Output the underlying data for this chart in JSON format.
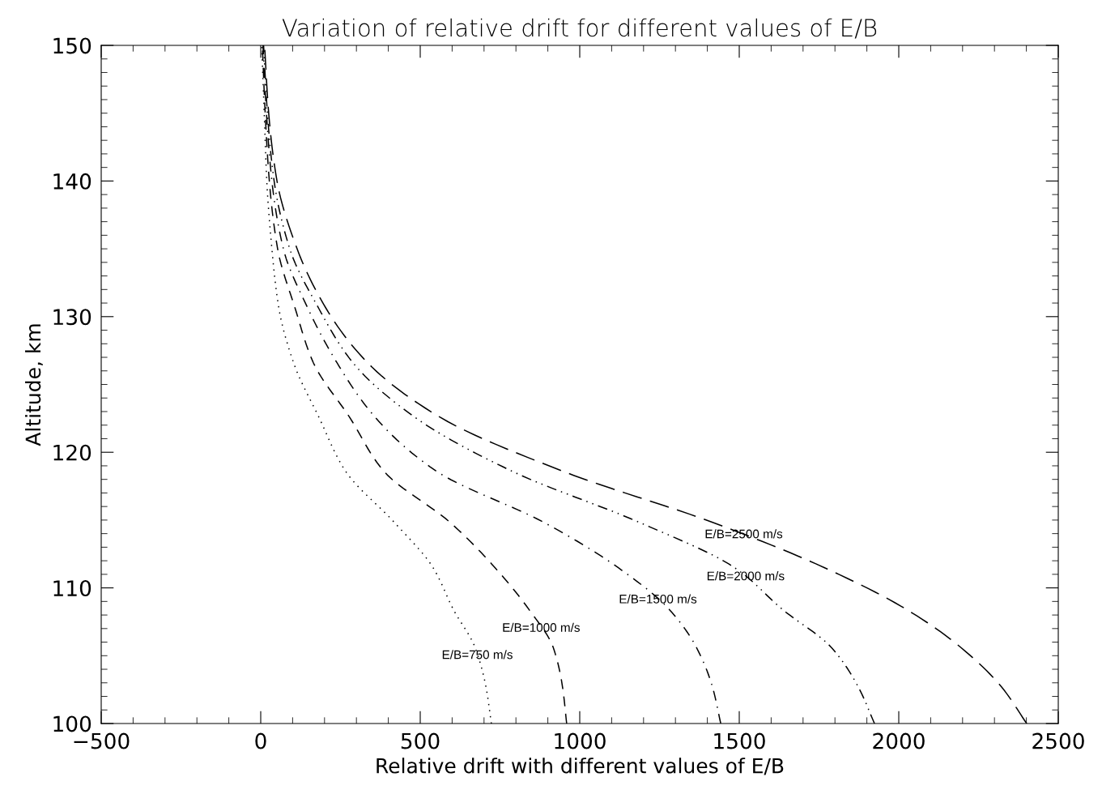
{
  "chart_data": {
    "type": "line",
    "title": "Variation of relative drift for different values of E/B",
    "xlabel": "Relative drift with different values of E/B",
    "ylabel": "Altitude, km",
    "xlim": [
      -500,
      2500
    ],
    "xticks": [
      {
        "value": -500,
        "label": "−500"
      },
      0,
      500,
      1000,
      1500,
      2000,
      2500
    ],
    "ylim": [
      100,
      150
    ],
    "yticks": [
      100,
      110,
      120,
      130,
      140,
      150
    ],
    "grid": false,
    "legend": false,
    "marker": "none",
    "series": [
      {
        "color": "#000000",
        "line_style": "dotted",
        "x": [
          723,
          706,
          672,
          604,
          540,
          420,
          266,
          182,
          103,
          57,
          35,
          19,
          11,
          3
        ],
        "values": [
          100,
          102.7,
          105.6,
          108.4,
          111.5,
          114.8,
          118.6,
          122.6,
          126.6,
          130.6,
          135,
          140,
          145,
          150
        ]
      },
      {
        "color": "#000000",
        "line_style": "dashed",
        "x": [
          959,
          946,
          917,
          841,
          734,
          595,
          386,
          278,
          165,
          108,
          53,
          27,
          14,
          5
        ],
        "values": [
          100,
          102.7,
          105.6,
          108.4,
          111.5,
          114.8,
          118.6,
          122.6,
          126.6,
          130.6,
          135,
          140,
          145,
          150
        ]
      },
      {
        "color": "#000000",
        "line_style": "dashdot",
        "x": [
          1442,
          1416,
          1366,
          1281,
          1120,
          890,
          551,
          358,
          239,
          148,
          71,
          35,
          18,
          7
        ],
        "values": [
          100,
          102.7,
          105.6,
          108.4,
          111.5,
          114.8,
          118.6,
          122.6,
          126.6,
          130.6,
          135,
          140,
          145,
          150
        ]
      },
      {
        "color": "#000000",
        "line_style": "dashdotdot",
        "x": [
          1924,
          1873,
          1789,
          1636,
          1485,
          1190,
          788,
          482,
          289,
          182,
          91,
          42,
          21,
          9
        ],
        "values": [
          100,
          102.7,
          105.6,
          108.4,
          111.5,
          114.8,
          118.6,
          122.6,
          126.6,
          130.6,
          135,
          140,
          145,
          150
        ]
      },
      {
        "color": "#000000",
        "line_style": "longdash",
        "x": [
          2401,
          2322,
          2195,
          2025,
          1766,
          1420,
          947,
          561,
          335,
          205,
          114,
          51,
          25,
          12
        ],
        "values": [
          100,
          102.7,
          105.6,
          108.4,
          111.5,
          114.8,
          118.6,
          122.6,
          126.6,
          130.6,
          135,
          140,
          145,
          150
        ]
      }
    ],
    "annotations": [
      {
        "text": "E/B=750 m/s",
        "x": 679,
        "y": 105.0
      },
      {
        "text": "E/B=1000 m/s",
        "x": 879,
        "y": 107.0
      },
      {
        "text": "E/B=1500 m/s",
        "x": 1245,
        "y": 109.1
      },
      {
        "text": "E/B=2000 m/s",
        "x": 1520,
        "y": 110.8
      },
      {
        "text": "E/B=2500 m/s",
        "x": 1514,
        "y": 113.9
      }
    ]
  }
}
